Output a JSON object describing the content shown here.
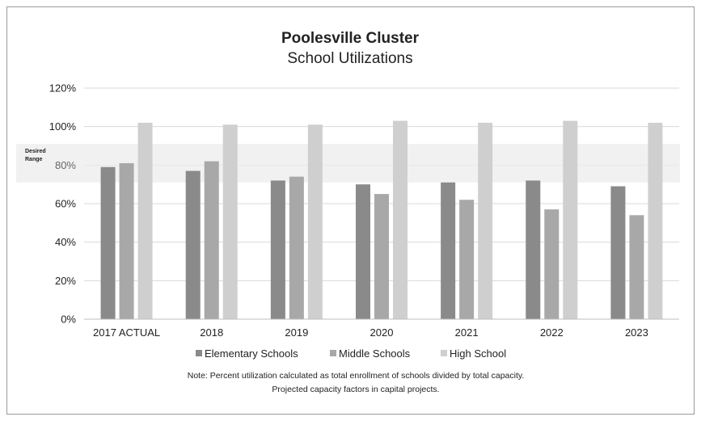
{
  "chart_data": {
    "type": "bar",
    "title": "Poolesville Cluster",
    "subtitle": "School Utilizations",
    "categories": [
      "2017 ACTUAL",
      "2018",
      "2019",
      "2020",
      "2021",
      "2022",
      "2023"
    ],
    "series": [
      {
        "name": "Elementary Schools",
        "values": [
          79,
          77,
          72,
          70,
          71,
          72,
          69
        ]
      },
      {
        "name": "Middle Schools",
        "values": [
          81,
          82,
          74,
          65,
          62,
          57,
          54
        ]
      },
      {
        "name": "High School",
        "values": [
          102,
          101,
          101,
          103,
          102,
          103,
          102
        ]
      }
    ],
    "ylim": [
      0,
      120
    ],
    "yticks": [
      "0%",
      "20%",
      "40%",
      "60%",
      "80%",
      "100%",
      "120%"
    ],
    "desired_range": {
      "label_line1": "Desired",
      "label_line2": "Range",
      "low": 71,
      "high": 91
    },
    "legend_position": "bottom",
    "grid": true,
    "note_line1": "Note:  Percent utilization calculated as total enrollment of schools divided by total capacity.",
    "note_line2": "Projected capacity factors in capital projects.",
    "colors": {
      "elementary": "#8a8a8a",
      "middle": "#a8a8a8",
      "high": "#cfcfcf",
      "band": "#ececec",
      "grid": "#d9d9d9"
    }
  }
}
